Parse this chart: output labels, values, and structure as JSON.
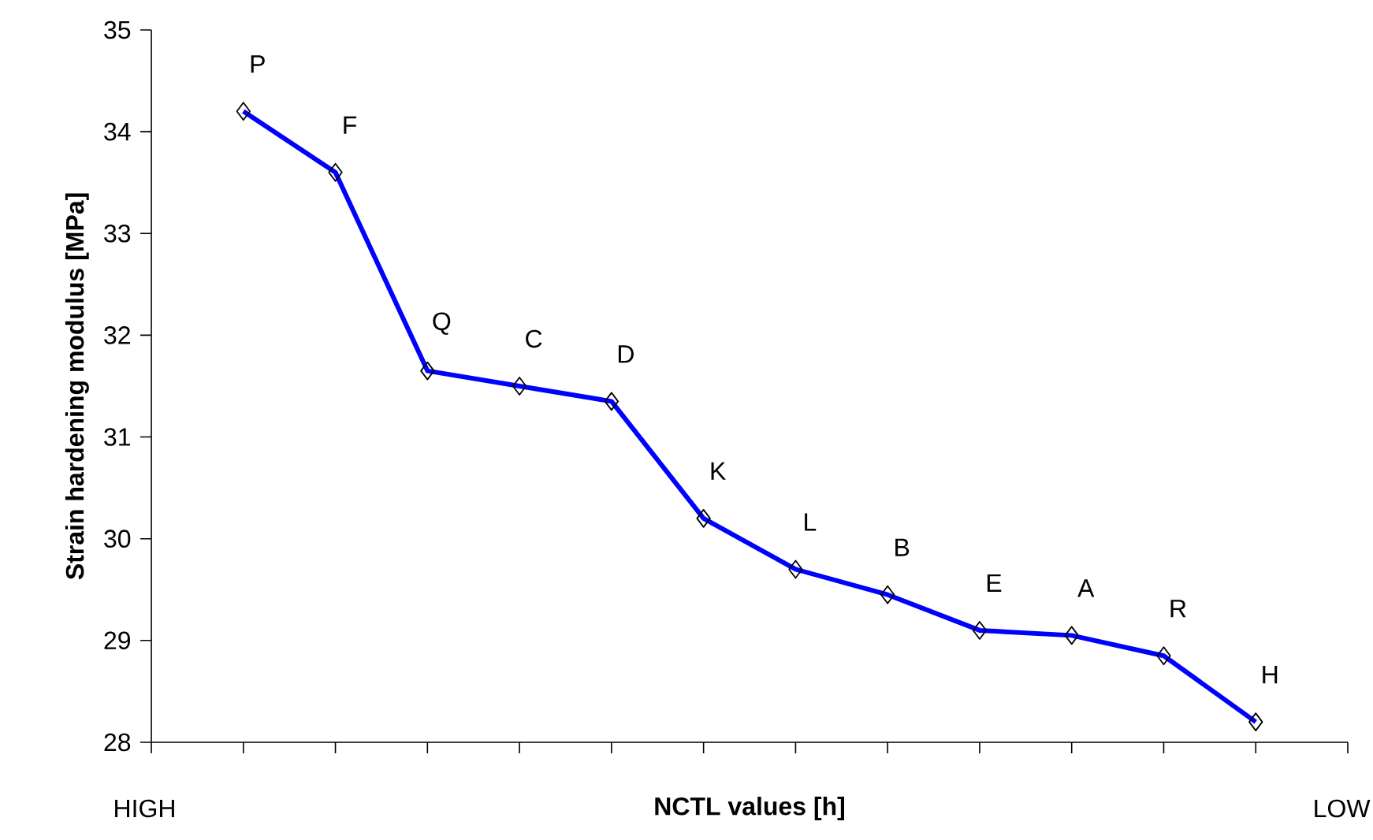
{
  "chart_data": {
    "type": "line",
    "xlabel": "NCTL values [h]",
    "ylabel": "Strain hardening modulus [MPa]",
    "categories": [
      null,
      null,
      null,
      null,
      null,
      null,
      null,
      null,
      null,
      null,
      null,
      null
    ],
    "values": [
      34.2,
      33.6,
      31.65,
      31.5,
      31.35,
      30.2,
      29.7,
      29.45,
      29.1,
      29.05,
      28.85,
      28.2
    ],
    "value_labels": [
      "P",
      "F",
      "Q",
      "C",
      "D",
      "K",
      "L",
      "B",
      "E",
      "A",
      "R",
      "H"
    ],
    "color": "#0000ff",
    "marker": "diamond",
    "line_style": "solid",
    "ylim": [
      28,
      35
    ],
    "yticks": [
      28,
      29,
      30,
      31,
      32,
      33,
      34,
      35
    ],
    "tick_labels": "y",
    "grid": false,
    "annotations": [
      "HIGH",
      "LOW"
    ]
  }
}
